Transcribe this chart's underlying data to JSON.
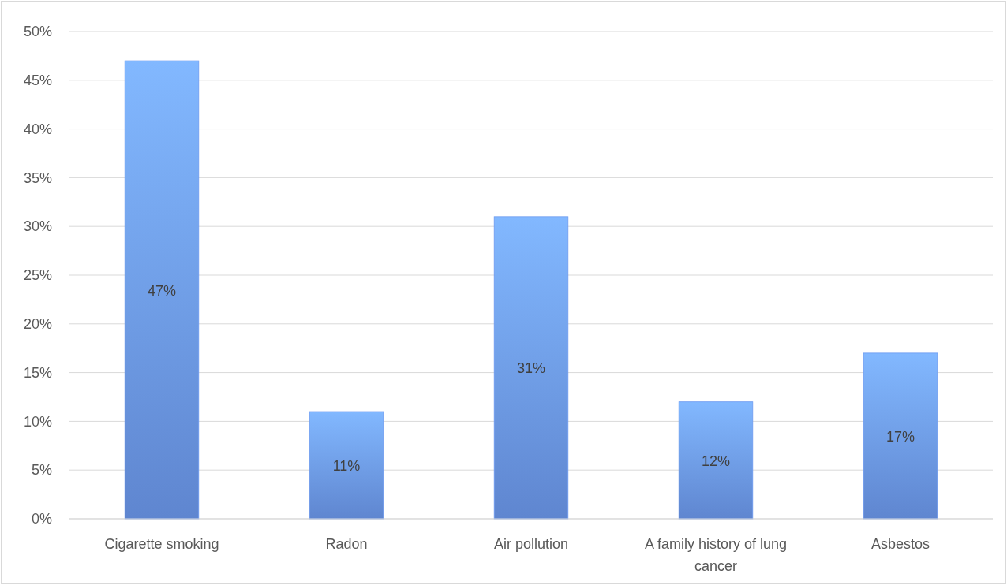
{
  "chart_data": {
    "type": "bar",
    "categories": [
      "Cigarette smoking",
      "Radon",
      "Air pollution",
      "A family history of lung cancer",
      "Asbestos"
    ],
    "values": [
      47,
      11,
      31,
      12,
      17
    ],
    "value_labels": [
      "47%",
      "11%",
      "31%",
      "12%",
      "17%"
    ],
    "color": "#6d9af0",
    "ylim": [
      0,
      50
    ],
    "yticks": [
      {
        "value": 0,
        "label": "0%"
      },
      {
        "value": 5,
        "label": "5%"
      },
      {
        "value": 10,
        "label": "10%"
      },
      {
        "value": 15,
        "label": "15%"
      },
      {
        "value": 20,
        "label": "20%"
      },
      {
        "value": 25,
        "label": "25%"
      },
      {
        "value": 30,
        "label": "30%"
      },
      {
        "value": 35,
        "label": "35%"
      },
      {
        "value": 40,
        "label": "40%"
      },
      {
        "value": 45,
        "label": "45%"
      },
      {
        "value": 50,
        "label": "50%"
      }
    ],
    "grid": "y"
  }
}
